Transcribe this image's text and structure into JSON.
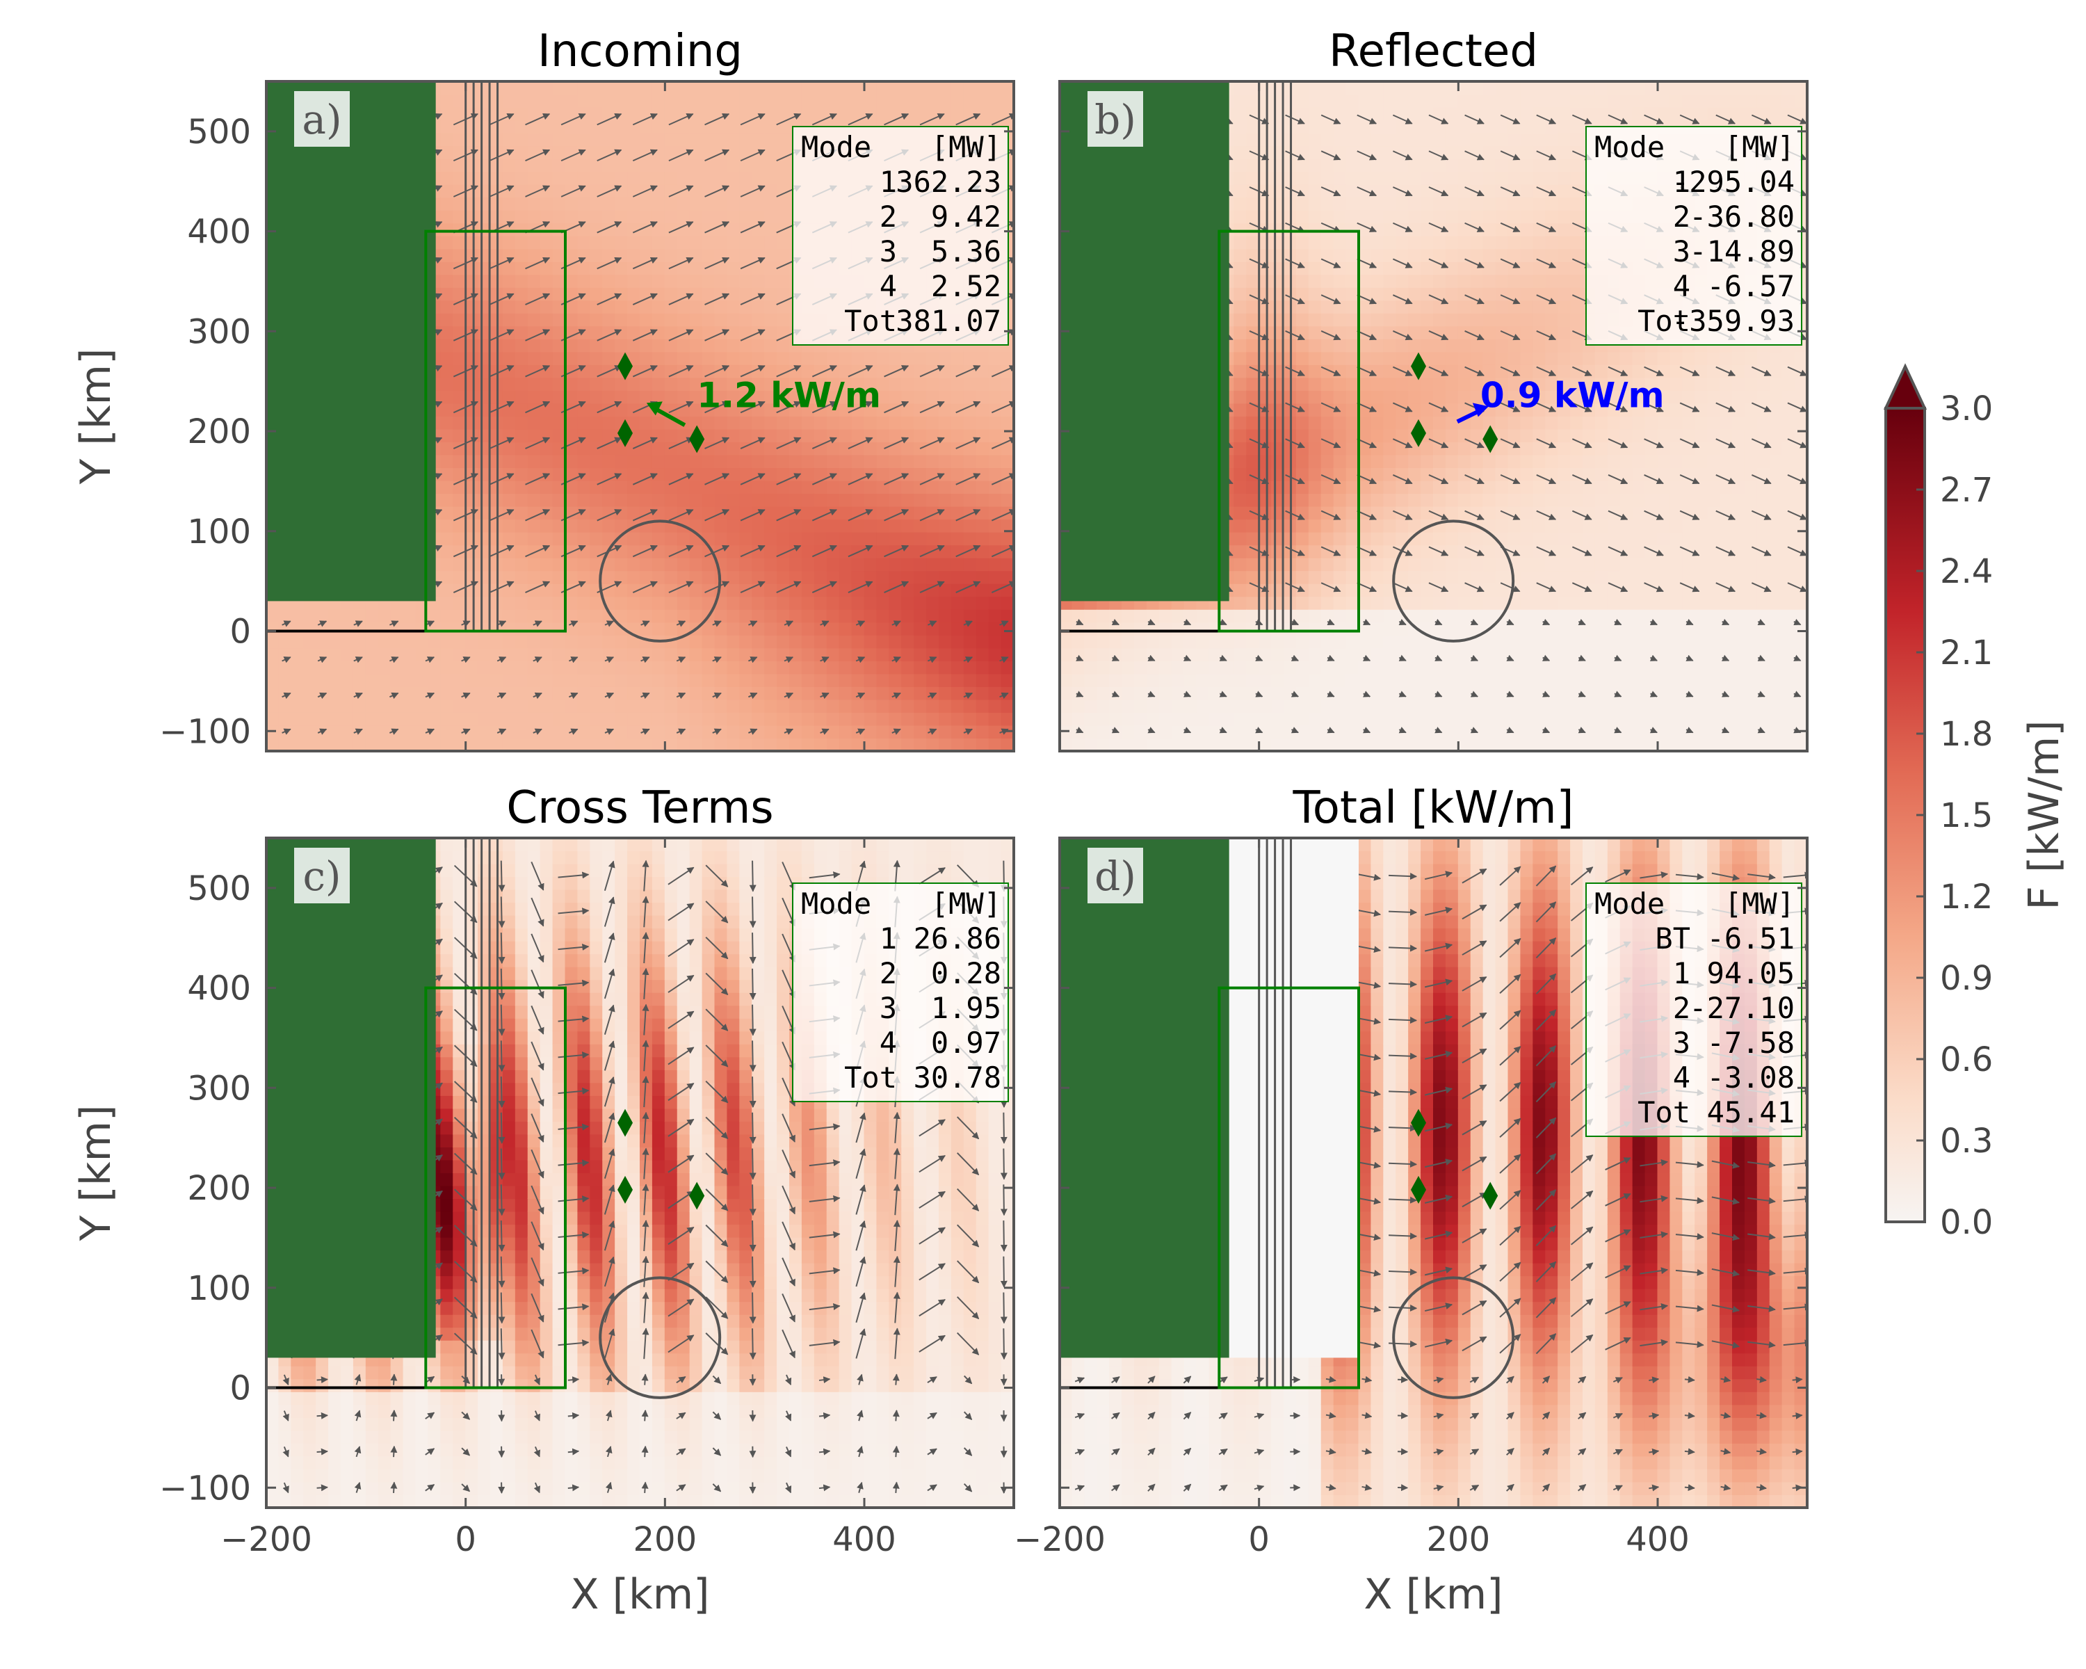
{
  "chart_data": {
    "type": "heatmap",
    "layout": "2x2 panels with shared colorbar",
    "xlabel": "X [km]",
    "ylabel": "Y [km]",
    "xlim": [
      -200,
      550
    ],
    "ylim": [
      -120,
      550
    ],
    "xticks": [
      -200,
      0,
      200,
      400
    ],
    "xtick_labels": [
      "−200",
      "0",
      "200",
      "400"
    ],
    "yticks": [
      -100,
      0,
      100,
      200,
      300,
      400,
      500
    ],
    "ytick_labels": [
      "−100",
      "0",
      "100",
      "200",
      "300",
      "400",
      "500"
    ],
    "colormap": "Reds",
    "colorbar": {
      "label": "F [kW/m]",
      "range": [
        0.0,
        3.0
      ],
      "ticks": [
        0.0,
        0.3,
        0.6,
        0.9,
        1.2,
        1.5,
        1.8,
        2.1,
        2.4,
        2.7,
        3.0
      ],
      "tick_labels": [
        "0.0",
        "0.3",
        "0.6",
        "0.9",
        "1.2",
        "1.5",
        "1.8",
        "2.1",
        "2.4",
        "2.7",
        "3.0"
      ],
      "extend": "max"
    },
    "land_color": "#2f6e34",
    "land_region": {
      "x": [
        -200,
        -30
      ],
      "y": [
        30,
        550
      ]
    },
    "coastline": {
      "x": [
        -200,
        -40
      ],
      "y": 0
    },
    "box": {
      "x": [
        -40,
        100
      ],
      "y": [
        0,
        400
      ]
    },
    "vertical_lines_x": [
      0,
      8,
      16,
      24,
      32
    ],
    "circle": {
      "center": [
        195,
        50
      ],
      "radius": 60
    },
    "markers": [
      {
        "x": 160,
        "y": 265
      },
      {
        "x": 160,
        "y": 198
      },
      {
        "x": 232,
        "y": 192
      }
    ],
    "panels": [
      {
        "label": "a)",
        "title": "Incoming",
        "table": {
          "header": [
            "Mode",
            "[MW]"
          ],
          "rows": [
            [
              "1",
              "362.23"
            ],
            [
              "2",
              "9.42"
            ],
            [
              "3",
              "5.36"
            ],
            [
              "4",
              "2.52"
            ],
            [
              "Tot",
              "381.07"
            ]
          ]
        },
        "arrow_annotation": {
          "text": "1.2 kW/m",
          "color": "#008000",
          "direction": "up-left"
        },
        "intensity": 0.9
      },
      {
        "label": "b)",
        "title": "Reflected",
        "table": {
          "header": [
            "Mode",
            "[MW]"
          ],
          "rows": [
            [
              "1",
              "-295.04"
            ],
            [
              "2",
              "-36.80"
            ],
            [
              "3",
              "-14.89"
            ],
            [
              "4",
              "-6.57"
            ],
            [
              "Tot",
              "-359.93"
            ]
          ]
        },
        "arrow_annotation": {
          "text": "0.9 kW/m",
          "color": "#0000ff",
          "direction": "up-right"
        },
        "intensity": 0.7
      },
      {
        "label": "c)",
        "title": "Cross Terms",
        "table": {
          "header": [
            "Mode",
            "[MW]"
          ],
          "rows": [
            [
              "1",
              "26.86"
            ],
            [
              "2",
              "0.28"
            ],
            [
              "3",
              "1.95"
            ],
            [
              "4",
              "0.97"
            ],
            [
              "Tot",
              "30.78"
            ]
          ]
        },
        "intensity": 1.0
      },
      {
        "label": "d)",
        "title": "Total [kW/m]",
        "table": {
          "header": [
            "Mode",
            "[MW]"
          ],
          "rows": [
            [
              "BT",
              "-6.51"
            ],
            [
              "1",
              "94.05"
            ],
            [
              "2",
              "-27.10"
            ],
            [
              "3",
              "-7.58"
            ],
            [
              "4",
              "-3.08"
            ],
            [
              "Tot",
              "45.41"
            ]
          ]
        },
        "intensity": 1.2
      }
    ]
  }
}
